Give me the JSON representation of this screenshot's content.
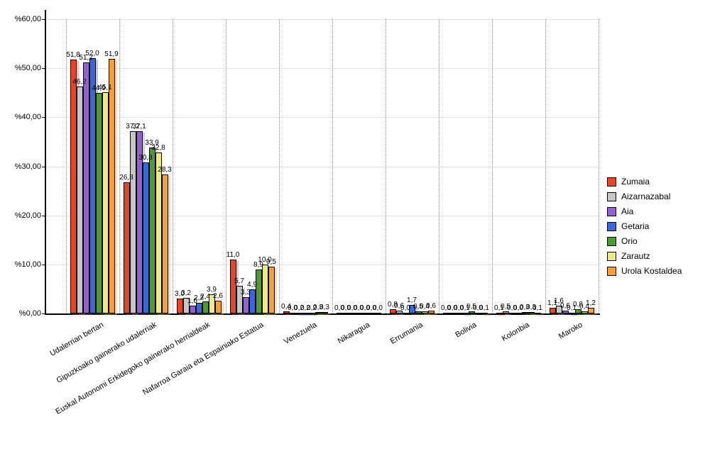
{
  "chart_data": {
    "type": "bar",
    "title": "",
    "categories": [
      "Udalerrian bertan",
      "Gipuzkoako gainerako udalerriak",
      "Euskal Autonomi Erkidegoko gainerako herrialdeak",
      "Nafarroa Garaia eta Espainiako Estatua",
      "Venezuela",
      "Nikaragua",
      "Errumania",
      "Bolivia",
      "Kolonbia",
      "Maroko"
    ],
    "series": [
      {
        "name": "Zumaia",
        "color": "#e2472a",
        "values": [
          51.8,
          26.8,
          3.0,
          11.0,
          0.4,
          0.0,
          0.8,
          0.0,
          0.1,
          1.1
        ]
      },
      {
        "name": "Aizarnazabal",
        "color": "#c6c6c6",
        "values": [
          46.2,
          37.2,
          3.2,
          5.7,
          0.0,
          0.0,
          0.6,
          0.0,
          0.5,
          1.6
        ]
      },
      {
        "name": "Aia",
        "color": "#9263cd",
        "values": [
          51.2,
          37.1,
          1.6,
          3.3,
          0.2,
          0.0,
          0.0,
          0.0,
          0.0,
          0.6
        ]
      },
      {
        "name": "Getaria",
        "color": "#3a68d8",
        "values": [
          52.0,
          30.8,
          2.2,
          4.9,
          0.2,
          0.0,
          1.7,
          0.1,
          0.0,
          0.1
        ]
      },
      {
        "name": "Orio",
        "color": "#4e9b35",
        "values": [
          44.9,
          33.9,
          2.4,
          8.9,
          0.2,
          0.0,
          0.5,
          0.5,
          0.3,
          0.8
        ]
      },
      {
        "name": "Zarautz",
        "color": "#ece98c",
        "values": [
          45.1,
          32.8,
          3.9,
          10.0,
          0.3,
          0.0,
          0.4,
          0.0,
          0.3,
          0.4
        ]
      },
      {
        "name": "Urola Kostaldea",
        "color": "#f2a03c",
        "values": [
          51.9,
          28.3,
          2.6,
          9.5,
          0.3,
          0.0,
          0.6,
          0.1,
          0.1,
          1.2
        ]
      }
    ],
    "y_axis": {
      "min": 0,
      "max": 60,
      "tick_values": [
        0,
        10,
        20,
        30,
        40,
        50,
        60
      ],
      "tick_labels": [
        "%0,00",
        "%10,00",
        "%20,00",
        "%30,00",
        "%40,00",
        "%50,00",
        "%60,00"
      ]
    },
    "value_labels": {
      "visible": true,
      "decimal_separator": ",",
      "decimals": 1
    },
    "legend": {
      "position": "right",
      "items": [
        "Zumaia",
        "Aizarnazabal",
        "Aia",
        "Getaria",
        "Orio",
        "Zarautz",
        "Urola Kostaldea"
      ]
    },
    "grid": {
      "horizontal": "solid",
      "vertical": "dotted"
    },
    "background_color": "#ffffff"
  }
}
